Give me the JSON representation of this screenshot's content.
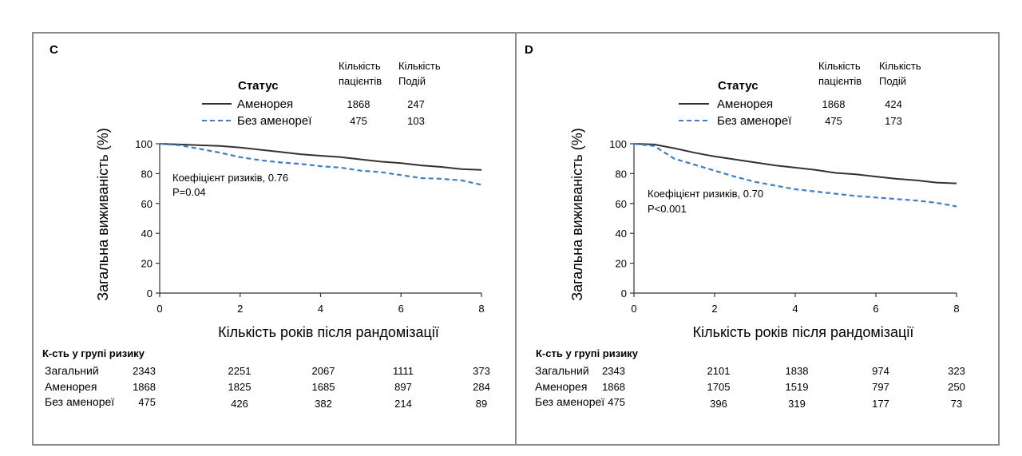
{
  "panels": [
    {
      "letter": "C",
      "legend": {
        "title": "Статус",
        "col1_header": [
          "Кількість",
          "пацієнтів"
        ],
        "col2_header": [
          "Кількість",
          "Подій"
        ],
        "rows": [
          {
            "label": "Аменорея",
            "patients": "1868",
            "events": "247"
          },
          {
            "label": "Без аменореї",
            "patients": "475",
            "events": "103"
          }
        ]
      },
      "annotation": [
        "Коефіцієнт ризиків, 0.76",
        "P=0.04"
      ],
      "risk_table": {
        "title": "К-сть у групі ризику",
        "rows": [
          {
            "label": "Загальний",
            "values": [
              "2343",
              "2251",
              "2067",
              "1111",
              "373"
            ]
          },
          {
            "label": "Аменорея",
            "values": [
              "1868",
              "1825",
              "1685",
              "897",
              "284"
            ]
          },
          {
            "label": "Без аменореї",
            "values": [
              "475",
              "426",
              "382",
              "214",
              "89"
            ]
          }
        ]
      }
    },
    {
      "letter": "D",
      "legend": {
        "title": "Статус",
        "col1_header": [
          "Кількість",
          "пацієнтів"
        ],
        "col2_header": [
          "Кількість",
          "Подій"
        ],
        "rows": [
          {
            "label": "Аменорея",
            "patients": "1868",
            "events": "424"
          },
          {
            "label": "Без аменореї",
            "patients": "475",
            "events": "173"
          }
        ]
      },
      "annotation": [
        "Коефіцієнт ризиків, 0.70",
        "P<0.001"
      ],
      "risk_table": {
        "title": "К-сть у групі ризику",
        "rows": [
          {
            "label": "Загальний",
            "values": [
              "2343",
              "2101",
              "1838",
              "974",
              "323"
            ]
          },
          {
            "label": "Аменорея",
            "values": [
              "1868",
              "1705",
              "1519",
              "797",
              "250"
            ]
          },
          {
            "label": "Без аменореї",
            "values": [
              "475",
              "396",
              "319",
              "177",
              "73"
            ]
          }
        ]
      }
    }
  ],
  "chart_data": [
    {
      "type": "line",
      "panel": "C",
      "xlabel": "Кількість років після рандомізації",
      "ylabel": "Загальна виживаність (%)",
      "xlim": [
        0,
        8
      ],
      "ylim": [
        0,
        100
      ],
      "xticks": [
        "0",
        "2",
        "4",
        "6",
        "8"
      ],
      "yticks": [
        "0",
        "20",
        "40",
        "60",
        "80",
        "100"
      ],
      "grid": false,
      "series": [
        {
          "name": "Аменорея",
          "style": "solid",
          "color": "#333333",
          "x": [
            0,
            0.5,
            1,
            1.5,
            2,
            2.5,
            3,
            3.5,
            4,
            4.5,
            5,
            5.5,
            6,
            6.5,
            7,
            7.5,
            8
          ],
          "y": [
            100,
            99.5,
            99,
            98.5,
            97.5,
            96,
            94.5,
            93,
            92,
            91,
            89.5,
            88,
            87,
            85.5,
            84.5,
            83,
            82.5
          ]
        },
        {
          "name": "Без аменореї",
          "style": "dashed",
          "color": "#3d7ec4",
          "x": [
            0,
            0.5,
            1,
            1.5,
            2,
            2.5,
            3,
            3.5,
            4,
            4.5,
            5,
            5.5,
            6,
            6.5,
            7,
            7.5,
            8
          ],
          "y": [
            100,
            99,
            96.5,
            94,
            91,
            89,
            87.5,
            86.5,
            85,
            84,
            82,
            81,
            79,
            77,
            76.5,
            75.5,
            72.5
          ]
        }
      ]
    },
    {
      "type": "line",
      "panel": "D",
      "xlabel": "Кількість років після рандомізації",
      "ylabel": "Загальна виживаність (%)",
      "xlim": [
        0,
        8
      ],
      "ylim": [
        0,
        100
      ],
      "xticks": [
        "0",
        "2",
        "4",
        "6",
        "8"
      ],
      "yticks": [
        "0",
        "20",
        "40",
        "60",
        "80",
        "100"
      ],
      "grid": false,
      "series": [
        {
          "name": "Аменорея",
          "style": "solid",
          "color": "#333333",
          "x": [
            0,
            0.5,
            1,
            1.5,
            2,
            2.5,
            3,
            3.5,
            4,
            4.5,
            5,
            5.5,
            6,
            6.5,
            7,
            7.5,
            8
          ],
          "y": [
            100,
            99.5,
            97,
            94,
            91.5,
            89.5,
            87.5,
            85.5,
            84,
            82.5,
            80.5,
            79.5,
            78,
            76.5,
            75.5,
            74,
            73.5
          ]
        },
        {
          "name": "Без аменореї",
          "style": "dashed",
          "color": "#3d7ec4",
          "x": [
            0,
            0.5,
            1,
            1.5,
            2,
            2.5,
            3,
            3.5,
            4,
            4.5,
            5,
            5.5,
            6,
            6.5,
            7,
            7.5,
            8
          ],
          "y": [
            100,
            98.5,
            90,
            86,
            82,
            78,
            74.5,
            72,
            69.5,
            68,
            66.5,
            65,
            64,
            63,
            62,
            60.5,
            58
          ]
        }
      ]
    }
  ]
}
